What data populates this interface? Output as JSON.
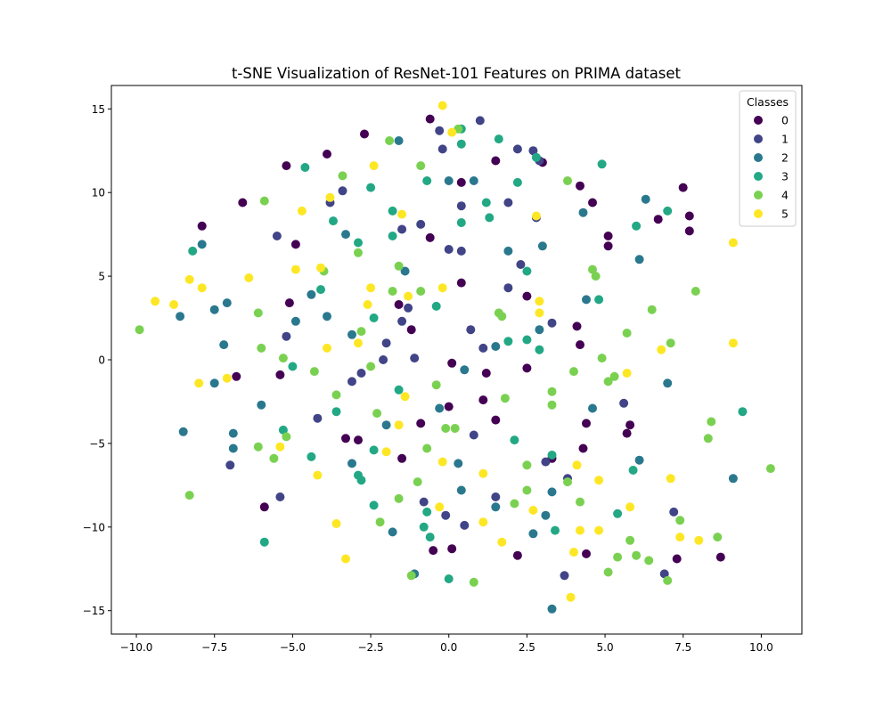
{
  "chart_data": {
    "type": "scatter",
    "title": "t-SNE Visualization of ResNet-101 Features on PRIMA dataset",
    "xlabel": "",
    "ylabel": "",
    "xlim": [
      -10.8,
      11.3
    ],
    "ylim": [
      -16.4,
      16.4
    ],
    "xticks": [
      -10.0,
      -7.5,
      -5.0,
      -2.5,
      0.0,
      2.5,
      5.0,
      7.5,
      10.0
    ],
    "yticks": [
      -15,
      -10,
      -5,
      0,
      5,
      10,
      15
    ],
    "xtick_labels": [
      "−10.0",
      "−7.5",
      "−5.0",
      "−2.5",
      "0.0",
      "2.5",
      "5.0",
      "7.5",
      "10.0"
    ],
    "ytick_labels": [
      "−15",
      "−10",
      "−5",
      "0",
      "5",
      "10",
      "15"
    ],
    "grid": false,
    "legend": {
      "title": "Classes",
      "position": "top-right"
    },
    "series": [
      {
        "name": "0",
        "color": "#440154",
        "points": [
          [
            -0.6,
            14.4
          ],
          [
            -2.7,
            13.5
          ],
          [
            -3.9,
            12.3
          ],
          [
            -5.2,
            11.6
          ],
          [
            3.0,
            11.8
          ],
          [
            1.5,
            11.9
          ],
          [
            0.4,
            10.6
          ],
          [
            4.2,
            10.4
          ],
          [
            7.5,
            10.3
          ],
          [
            -6.6,
            9.4
          ],
          [
            4.6,
            9.4
          ],
          [
            -7.9,
            8.0
          ],
          [
            7.7,
            8.6
          ],
          [
            6.7,
            8.4
          ],
          [
            7.7,
            7.7
          ],
          [
            -4.9,
            6.9
          ],
          [
            5.1,
            7.4
          ],
          [
            5.1,
            6.8
          ],
          [
            -0.6,
            7.3
          ],
          [
            0.4,
            4.6
          ],
          [
            2.5,
            3.8
          ],
          [
            -1.6,
            3.3
          ],
          [
            -5.1,
            3.4
          ],
          [
            -1.2,
            1.8
          ],
          [
            4.1,
            2.0
          ],
          [
            4.2,
            0.9
          ],
          [
            0.1,
            -0.2
          ],
          [
            1.2,
            -0.8
          ],
          [
            2.5,
            -0.5
          ],
          [
            -6.8,
            -1.0
          ],
          [
            -5.4,
            -0.9
          ],
          [
            0.0,
            -2.8
          ],
          [
            1.1,
            -2.4
          ],
          [
            1.5,
            -3.6
          ],
          [
            4.4,
            -3.8
          ],
          [
            5.8,
            -3.9
          ],
          [
            5.7,
            -4.4
          ],
          [
            -3.3,
            -4.7
          ],
          [
            -2.9,
            -4.8
          ],
          [
            -0.9,
            -3.8
          ],
          [
            4.3,
            -5.3
          ],
          [
            3.3,
            -5.9
          ],
          [
            -1.5,
            -5.9
          ],
          [
            -5.9,
            -8.8
          ],
          [
            -0.5,
            -11.4
          ],
          [
            0.1,
            -11.3
          ],
          [
            2.2,
            -11.7
          ],
          [
            4.4,
            -11.6
          ],
          [
            7.3,
            -11.9
          ],
          [
            8.7,
            -11.8
          ]
        ]
      },
      {
        "name": "1",
        "color": "#414487",
        "points": [
          [
            1.0,
            14.3
          ],
          [
            -0.3,
            13.7
          ],
          [
            -0.2,
            12.6
          ],
          [
            2.2,
            12.6
          ],
          [
            2.7,
            12.5
          ],
          [
            2.9,
            11.9
          ],
          [
            -3.4,
            10.1
          ],
          [
            -3.8,
            9.4
          ],
          [
            -0.9,
            8.1
          ],
          [
            -1.5,
            7.8
          ],
          [
            0.4,
            9.2
          ],
          [
            1.9,
            9.4
          ],
          [
            2.8,
            8.5
          ],
          [
            -5.5,
            7.4
          ],
          [
            0.0,
            6.6
          ],
          [
            0.4,
            6.5
          ],
          [
            2.3,
            5.7
          ],
          [
            1.9,
            4.3
          ],
          [
            -1.3,
            3.1
          ],
          [
            3.3,
            2.2
          ],
          [
            -1.5,
            2.3
          ],
          [
            0.7,
            1.8
          ],
          [
            -5.2,
            1.4
          ],
          [
            -2.0,
            1.0
          ],
          [
            1.1,
            0.7
          ],
          [
            -1.1,
            0.1
          ],
          [
            -2.1,
            0.0
          ],
          [
            -2.8,
            -0.8
          ],
          [
            -3.1,
            -1.3
          ],
          [
            -4.2,
            -3.5
          ],
          [
            5.6,
            -2.6
          ],
          [
            0.8,
            -4.5
          ],
          [
            3.1,
            -6.1
          ],
          [
            -5.4,
            -8.2
          ],
          [
            -7.0,
            -6.3
          ],
          [
            -0.8,
            -8.5
          ],
          [
            1.5,
            -8.2
          ],
          [
            3.8,
            -7.1
          ],
          [
            -0.1,
            -9.3
          ],
          [
            0.5,
            -9.9
          ],
          [
            7.2,
            -9.1
          ],
          [
            3.7,
            -12.9
          ],
          [
            6.9,
            -12.8
          ]
        ]
      },
      {
        "name": "2",
        "color": "#2a788e",
        "points": [
          [
            -1.6,
            13.1
          ],
          [
            0.0,
            10.7
          ],
          [
            0.8,
            10.7
          ],
          [
            6.3,
            9.6
          ],
          [
            4.3,
            8.8
          ],
          [
            -3.3,
            7.5
          ],
          [
            3.0,
            6.8
          ],
          [
            1.9,
            6.5
          ],
          [
            6.1,
            6.0
          ],
          [
            -1.4,
            5.3
          ],
          [
            -4.4,
            3.9
          ],
          [
            -7.1,
            3.4
          ],
          [
            -7.5,
            3.0
          ],
          [
            4.4,
            3.6
          ],
          [
            -3.9,
            2.6
          ],
          [
            -4.9,
            2.3
          ],
          [
            2.9,
            1.8
          ],
          [
            -3.1,
            1.5
          ],
          [
            1.5,
            0.8
          ],
          [
            -7.2,
            0.9
          ],
          [
            0.5,
            -0.6
          ],
          [
            7.0,
            -1.4
          ],
          [
            -7.5,
            -1.4
          ],
          [
            -6.0,
            -2.7
          ],
          [
            -0.3,
            -2.9
          ],
          [
            4.6,
            -2.9
          ],
          [
            -8.5,
            -4.3
          ],
          [
            -6.9,
            -4.4
          ],
          [
            -6.9,
            -5.3
          ],
          [
            6.1,
            -6.0
          ],
          [
            0.3,
            -6.2
          ],
          [
            -3.1,
            -6.2
          ],
          [
            3.3,
            -7.9
          ],
          [
            0.4,
            -7.8
          ],
          [
            9.1,
            -7.1
          ],
          [
            1.5,
            -8.8
          ],
          [
            3.1,
            -9.3
          ],
          [
            2.7,
            -10.4
          ],
          [
            -1.8,
            -10.3
          ],
          [
            -1.1,
            -12.8
          ],
          [
            3.3,
            -14.9
          ],
          [
            -7.9,
            6.9
          ],
          [
            -8.6,
            2.6
          ],
          [
            -2.0,
            -3.9
          ]
        ]
      },
      {
        "name": "3",
        "color": "#22a884",
        "points": [
          [
            0.4,
            13.8
          ],
          [
            1.6,
            13.2
          ],
          [
            0.4,
            12.9
          ],
          [
            2.8,
            12.1
          ],
          [
            4.9,
            11.7
          ],
          [
            -4.6,
            11.5
          ],
          [
            -0.7,
            10.7
          ],
          [
            -2.5,
            10.3
          ],
          [
            2.2,
            10.6
          ],
          [
            -1.8,
            8.9
          ],
          [
            -3.7,
            8.3
          ],
          [
            0.4,
            8.2
          ],
          [
            1.3,
            8.5
          ],
          [
            7.0,
            8.9
          ],
          [
            6.0,
            8.0
          ],
          [
            -8.2,
            6.5
          ],
          [
            -1.8,
            7.4
          ],
          [
            -2.9,
            7.0
          ],
          [
            2.5,
            5.3
          ],
          [
            -4.1,
            4.2
          ],
          [
            4.8,
            3.6
          ],
          [
            -0.4,
            3.2
          ],
          [
            -2.4,
            2.5
          ],
          [
            1.9,
            1.1
          ],
          [
            2.5,
            1.2
          ],
          [
            2.9,
            0.6
          ],
          [
            -5.0,
            -0.4
          ],
          [
            -1.6,
            -1.8
          ],
          [
            -3.6,
            -3.1
          ],
          [
            -5.3,
            -4.2
          ],
          [
            2.1,
            -4.8
          ],
          [
            -4.4,
            -5.8
          ],
          [
            -2.4,
            -5.4
          ],
          [
            3.3,
            -5.7
          ],
          [
            5.9,
            -6.6
          ],
          [
            -2.9,
            -6.9
          ],
          [
            -2.8,
            -7.2
          ],
          [
            -2.4,
            -8.7
          ],
          [
            -0.7,
            -9.1
          ],
          [
            -0.8,
            -10.0
          ],
          [
            -0.6,
            -10.6
          ],
          [
            5.4,
            -9.2
          ],
          [
            3.4,
            -10.2
          ],
          [
            -5.9,
            -10.9
          ],
          [
            0.0,
            -13.1
          ],
          [
            9.4,
            -3.1
          ],
          [
            1.2,
            9.4
          ]
        ]
      },
      {
        "name": "4",
        "color": "#7ad151",
        "points": [
          [
            -1.9,
            13.1
          ],
          [
            0.3,
            13.8
          ],
          [
            -0.9,
            11.6
          ],
          [
            -3.4,
            11.0
          ],
          [
            3.8,
            10.7
          ],
          [
            -5.9,
            9.5
          ],
          [
            -2.9,
            6.4
          ],
          [
            -4.0,
            5.3
          ],
          [
            -1.6,
            5.6
          ],
          [
            4.6,
            5.4
          ],
          [
            4.7,
            5.0
          ],
          [
            -1.8,
            4.1
          ],
          [
            -0.9,
            4.1
          ],
          [
            7.9,
            4.1
          ],
          [
            -6.1,
            2.8
          ],
          [
            6.5,
            3.0
          ],
          [
            1.6,
            2.8
          ],
          [
            1.7,
            2.6
          ],
          [
            -2.8,
            1.7
          ],
          [
            5.7,
            1.6
          ],
          [
            -6.0,
            0.7
          ],
          [
            -5.3,
            0.1
          ],
          [
            7.1,
            1.0
          ],
          [
            4.9,
            0.1
          ],
          [
            4.0,
            -0.7
          ],
          [
            5.3,
            -1.0
          ],
          [
            5.1,
            -1.3
          ],
          [
            -4.3,
            -0.7
          ],
          [
            -2.5,
            -0.4
          ],
          [
            -3.6,
            -2.1
          ],
          [
            -0.4,
            -1.5
          ],
          [
            1.8,
            -2.3
          ],
          [
            3.3,
            -1.9
          ],
          [
            3.3,
            -2.7
          ],
          [
            -2.3,
            -3.2
          ],
          [
            8.4,
            -3.7
          ],
          [
            8.3,
            -4.7
          ],
          [
            -0.1,
            -4.1
          ],
          [
            0.2,
            -4.1
          ],
          [
            -5.2,
            -4.6
          ],
          [
            -6.1,
            -5.2
          ],
          [
            -0.7,
            -5.3
          ],
          [
            -5.6,
            -5.9
          ],
          [
            2.5,
            -6.3
          ],
          [
            -1.0,
            -7.3
          ],
          [
            3.8,
            -7.3
          ],
          [
            10.3,
            -6.5
          ],
          [
            -8.3,
            -8.1
          ],
          [
            -1.6,
            -8.3
          ],
          [
            2.1,
            -8.6
          ],
          [
            2.5,
            -7.8
          ],
          [
            4.2,
            -8.5
          ],
          [
            -2.2,
            -9.7
          ],
          [
            7.4,
            -9.6
          ],
          [
            5.8,
            -10.8
          ],
          [
            8.6,
            -10.6
          ],
          [
            5.4,
            -11.8
          ],
          [
            6.0,
            -11.7
          ],
          [
            6.4,
            -12.0
          ],
          [
            5.1,
            -12.7
          ],
          [
            7.0,
            -13.2
          ],
          [
            -1.2,
            -12.9
          ],
          [
            0.8,
            -13.3
          ],
          [
            -9.9,
            1.8
          ]
        ]
      },
      {
        "name": "5",
        "color": "#fde725",
        "points": [
          [
            -0.2,
            15.2
          ],
          [
            0.1,
            13.6
          ],
          [
            -2.4,
            11.6
          ],
          [
            -3.8,
            9.7
          ],
          [
            -4.7,
            8.9
          ],
          [
            -1.5,
            8.7
          ],
          [
            2.8,
            8.6
          ],
          [
            9.1,
            7.0
          ],
          [
            -4.9,
            5.4
          ],
          [
            -4.1,
            5.5
          ],
          [
            -8.3,
            4.8
          ],
          [
            -6.4,
            4.9
          ],
          [
            -7.9,
            4.3
          ],
          [
            -2.5,
            4.3
          ],
          [
            -1.3,
            3.8
          ],
          [
            -9.4,
            3.5
          ],
          [
            -8.8,
            3.3
          ],
          [
            -2.6,
            3.3
          ],
          [
            2.9,
            3.5
          ],
          [
            2.9,
            2.8
          ],
          [
            -3.9,
            0.7
          ],
          [
            -2.9,
            1.0
          ],
          [
            9.1,
            1.0
          ],
          [
            6.8,
            0.6
          ],
          [
            5.7,
            -0.8
          ],
          [
            -8.0,
            -1.4
          ],
          [
            -7.1,
            -1.1
          ],
          [
            -1.4,
            -2.2
          ],
          [
            -1.6,
            -3.9
          ],
          [
            -2.0,
            -5.5
          ],
          [
            -5.4,
            -5.2
          ],
          [
            -0.2,
            -6.1
          ],
          [
            4.1,
            -6.3
          ],
          [
            1.1,
            -6.8
          ],
          [
            -4.2,
            -6.9
          ],
          [
            7.1,
            -7.1
          ],
          [
            4.8,
            -7.2
          ],
          [
            -0.3,
            -8.8
          ],
          [
            2.7,
            -9.0
          ],
          [
            5.8,
            -8.8
          ],
          [
            -3.6,
            -9.8
          ],
          [
            1.1,
            -9.7
          ],
          [
            4.2,
            -10.2
          ],
          [
            4.8,
            -10.2
          ],
          [
            1.7,
            -10.9
          ],
          [
            7.4,
            -10.6
          ],
          [
            8.0,
            -10.8
          ],
          [
            4.0,
            -11.5
          ],
          [
            -3.3,
            -11.9
          ],
          [
            3.9,
            -14.2
          ],
          [
            -0.2,
            4.3
          ]
        ]
      }
    ]
  }
}
